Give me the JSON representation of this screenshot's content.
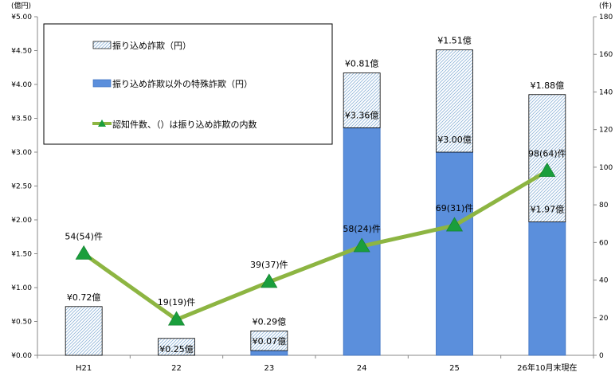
{
  "chart_data": {
    "type": "bar",
    "stacked": true,
    "categories": [
      "H21",
      "22",
      "23",
      "24",
      "25",
      "26年10月末現在"
    ],
    "series": [
      {
        "name": "振り込め詐欺以外の特殊詐欺（円）",
        "axis": "left",
        "pattern": "solid",
        "color": "#5b8fdc",
        "values": [
          0,
          0,
          0.07,
          3.36,
          3.0,
          1.97
        ],
        "labels": [
          "",
          "",
          "",
          "¥3.36億",
          "¥3.00億",
          "¥1.97億"
        ]
      },
      {
        "name": "振り込め詐欺（円）",
        "axis": "left",
        "pattern": "hatched",
        "color": "#8fb4d8",
        "values": [
          0.72,
          0.25,
          0.29,
          0.81,
          1.51,
          1.88
        ],
        "labels": [
          "¥0.72億",
          "¥0.25億",
          "¥0.29億",
          "¥0.81億",
          "¥1.51億",
          "¥1.88億"
        ]
      },
      {
        "name": "認知件数、（）は振り込め詐欺の内数",
        "type": "line",
        "axis": "right",
        "color": "#8db542",
        "marker_color": "#1a9e3c",
        "values": [
          54,
          19,
          39,
          58,
          69,
          98
        ],
        "labels": [
          "54(54)件",
          "19(19)件",
          "39(37)件",
          "58(24)件",
          "69(31)件",
          "98(64)件"
        ]
      }
    ],
    "extra_labels": [
      {
        "category": "23",
        "text": "¥0.07億"
      }
    ],
    "y_left": {
      "unit": "(億円)",
      "min": 0,
      "max": 5,
      "step": 0.5,
      "ticks": [
        "¥0.00",
        "¥0.50",
        "¥1.00",
        "¥1.50",
        "¥2.00",
        "¥2.50",
        "¥3.00",
        "¥3.50",
        "¥4.00",
        "¥4.50",
        "¥5.00"
      ]
    },
    "y_right": {
      "unit": "(件)",
      "min": 0,
      "max": 180,
      "step": 20,
      "ticks": [
        "0",
        "20",
        "40",
        "60",
        "80",
        "100",
        "120",
        "140",
        "160",
        "180"
      ]
    },
    "legend_position": "top-left",
    "legend_order": [
      1,
      0,
      2
    ],
    "grid": false
  }
}
